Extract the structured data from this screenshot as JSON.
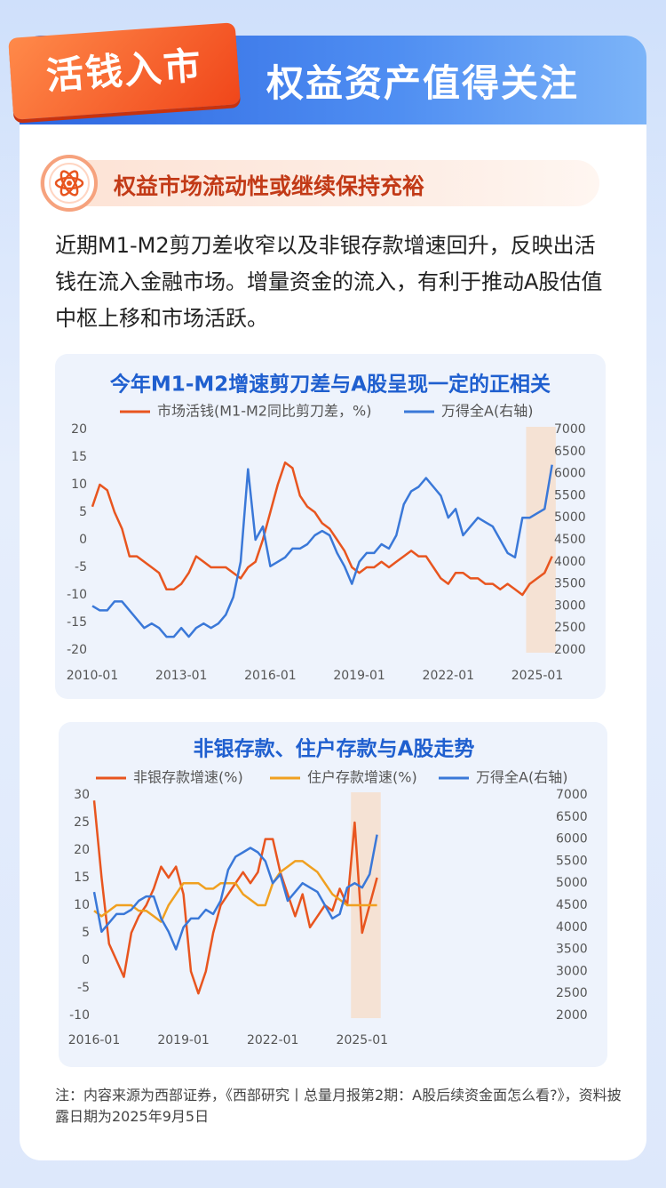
{
  "header": {
    "tag": "活钱入市",
    "title": "权益资产值得关注"
  },
  "section": {
    "title": "权益市场流动性或继续保持充裕"
  },
  "paragraph": "近期M1-M2剪刀差收窄以及非银存款增速回升，反映出活钱在流入金融市场。增量资金的流入，有利于推动A股估值中枢上移和市场活跃。",
  "chart_data": [
    {
      "type": "line",
      "title": "今年M1-M2增速剪刀差与A股呈现一定的正相关",
      "x": [
        "2010-01",
        "2010-04",
        "2010-07",
        "2010-10",
        "2011-01",
        "2011-04",
        "2011-07",
        "2011-10",
        "2012-01",
        "2012-04",
        "2012-07",
        "2012-10",
        "2013-01",
        "2013-04",
        "2013-07",
        "2013-10",
        "2014-01",
        "2014-04",
        "2014-07",
        "2014-10",
        "2015-01",
        "2015-04",
        "2015-07",
        "2015-10",
        "2016-01",
        "2016-04",
        "2016-07",
        "2016-10",
        "2017-01",
        "2017-04",
        "2017-07",
        "2017-10",
        "2018-01",
        "2018-04",
        "2018-07",
        "2018-10",
        "2019-01",
        "2019-04",
        "2019-07",
        "2019-10",
        "2020-01",
        "2020-04",
        "2020-07",
        "2020-10",
        "2021-01",
        "2021-04",
        "2021-07",
        "2021-10",
        "2022-01",
        "2022-04",
        "2022-07",
        "2022-10",
        "2023-01",
        "2023-04",
        "2023-07",
        "2023-10",
        "2024-01",
        "2024-04",
        "2024-07",
        "2024-10",
        "2025-01",
        "2025-04",
        "2025-07"
      ],
      "xticks": [
        "2010-01",
        "2013-01",
        "2016-01",
        "2019-01",
        "2022-01",
        "2025-01"
      ],
      "highlight": [
        "2024-10",
        "2025-07"
      ],
      "ylim": [
        -20,
        20
      ],
      "yticks": [
        -20,
        -15,
        -10,
        -5,
        0,
        5,
        10,
        15,
        20
      ],
      "y2lim": [
        2000,
        7000
      ],
      "y2ticks": [
        2000,
        2500,
        3000,
        3500,
        4000,
        4500,
        5000,
        5500,
        6000,
        6500,
        7000
      ],
      "series": [
        {
          "name": "市场活钱(M1-M2同比剪刀差，%)",
          "color": "#e8551f",
          "values": [
            6,
            10,
            9,
            5,
            2,
            -3,
            -3,
            -4,
            -5,
            -6,
            -9,
            -9,
            -8,
            -6,
            -3,
            -4,
            -5,
            -5,
            -5,
            -6,
            -7,
            -5,
            -4,
            0,
            5,
            10,
            14,
            13,
            8,
            6,
            5,
            3,
            2,
            0,
            -2,
            -5,
            -6,
            -5,
            -5,
            -4,
            -5,
            -4,
            -3,
            -2,
            -3,
            -3,
            -5,
            -7,
            -8,
            -6,
            -6,
            -7,
            -7,
            -8,
            -8,
            -9,
            -8,
            -9,
            -10,
            -8,
            -7,
            -6,
            -3
          ]
        },
        {
          "name": "万得全A(右轴)",
          "color": "#3a78d8",
          "axis": "y2",
          "values": [
            3000,
            2900,
            2900,
            3100,
            3100,
            2900,
            2700,
            2500,
            2600,
            2500,
            2300,
            2300,
            2500,
            2300,
            2500,
            2600,
            2500,
            2600,
            2800,
            3200,
            4000,
            6100,
            4500,
            4800,
            3900,
            4000,
            4100,
            4300,
            4300,
            4400,
            4600,
            4700,
            4600,
            4200,
            3900,
            3500,
            4000,
            4200,
            4200,
            4400,
            4300,
            4600,
            5300,
            5600,
            5700,
            5900,
            5700,
            5500,
            5000,
            5200,
            4600,
            4800,
            5000,
            4900,
            4800,
            4500,
            4200,
            4100,
            5000,
            5000,
            5100,
            5200,
            6200
          ]
        }
      ]
    },
    {
      "type": "line",
      "title": "非银存款、住户存款与A股走势",
      "x": [
        "2016-01",
        "2016-04",
        "2016-07",
        "2016-10",
        "2017-01",
        "2017-04",
        "2017-07",
        "2017-10",
        "2018-01",
        "2018-04",
        "2018-07",
        "2018-10",
        "2019-01",
        "2019-04",
        "2019-07",
        "2019-10",
        "2020-01",
        "2020-04",
        "2020-07",
        "2020-10",
        "2021-01",
        "2021-04",
        "2021-07",
        "2021-10",
        "2022-01",
        "2022-04",
        "2022-07",
        "2022-10",
        "2023-01",
        "2023-04",
        "2023-07",
        "2023-10",
        "2024-01",
        "2024-04",
        "2024-07",
        "2024-10",
        "2025-01",
        "2025-04",
        "2025-07"
      ],
      "xticks": [
        "2016-01",
        "2019-01",
        "2022-01",
        "2025-01"
      ],
      "highlight": [
        "2024-10",
        "2025-07"
      ],
      "ylim": [
        -10,
        30
      ],
      "yticks": [
        -10,
        -5,
        0,
        5,
        10,
        15,
        20,
        25,
        30
      ],
      "y2lim": [
        2000,
        7000
      ],
      "y2ticks": [
        2000,
        2500,
        3000,
        3500,
        4000,
        4500,
        5000,
        5500,
        6000,
        6500,
        7000
      ],
      "series": [
        {
          "name": "非银存款增速(%)",
          "color": "#e8551f",
          "values": [
            29,
            15,
            3,
            0,
            -3,
            5,
            8,
            10,
            13,
            17,
            15,
            17,
            12,
            -2,
            -6,
            -2,
            5,
            10,
            12,
            14,
            16,
            14,
            16,
            22,
            22,
            16,
            12,
            8,
            12,
            6,
            8,
            10,
            9,
            13,
            10,
            25,
            5,
            10,
            15
          ]
        },
        {
          "name": "住户存款增速(%)",
          "color": "#f0a020",
          "values": [
            9,
            8,
            9,
            10,
            10,
            10,
            9,
            9,
            8,
            7,
            10,
            12,
            14,
            14,
            14,
            13,
            13,
            14,
            14,
            14,
            12,
            11,
            10,
            10,
            14,
            16,
            17,
            18,
            18,
            17,
            16,
            14,
            12,
            11,
            10,
            10,
            10,
            10,
            10
          ]
        },
        {
          "name": "万得全A(右轴)",
          "color": "#3a78d8",
          "axis": "y2",
          "values": [
            4800,
            3900,
            4100,
            4300,
            4300,
            4400,
            4600,
            4700,
            4700,
            4200,
            3900,
            3500,
            4000,
            4200,
            4200,
            4400,
            4300,
            4600,
            5300,
            5600,
            5700,
            5800,
            5700,
            5500,
            5000,
            5200,
            4600,
            4800,
            5000,
            4900,
            4800,
            4500,
            4200,
            4300,
            4900,
            5000,
            4900,
            5200,
            6100
          ]
        }
      ]
    }
  ],
  "footnote": "注：内容来源为西部证券，《西部研究丨总量月报第2期：A股后续资金面怎么看?》，资料披露日期为2025年9月5日"
}
